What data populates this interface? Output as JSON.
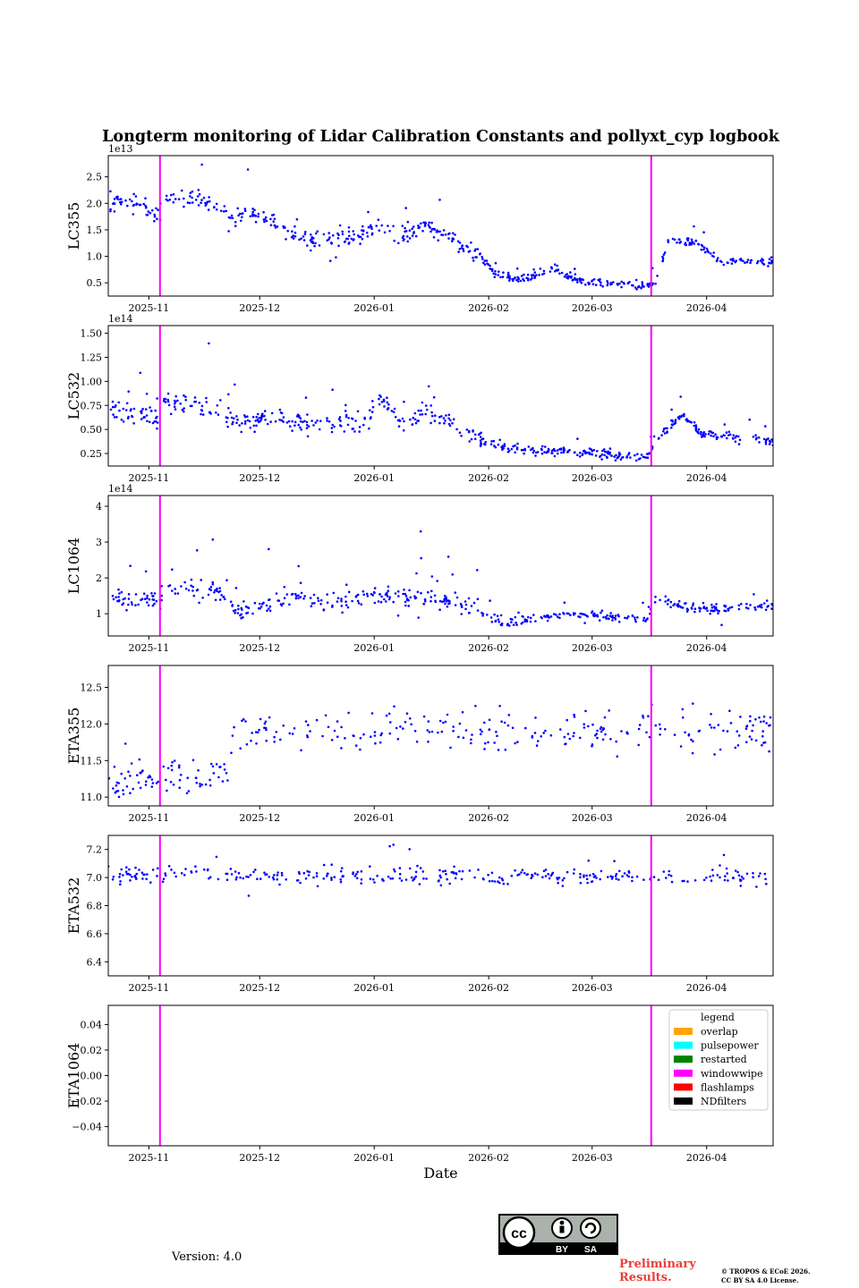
{
  "chart_data": {
    "type": "scatter",
    "title": "Longterm monitoring of Lidar Calibration Constants and pollyxt_cyp logbook",
    "xlabel": "Date",
    "x_range": [
      "2025-10-21",
      "2026-04-19"
    ],
    "x_ticks": [
      "2025-11",
      "2025-12",
      "2026-01",
      "2026-02",
      "2026-03",
      "2026-04"
    ],
    "events": [
      {
        "type": "windowwipe",
        "date": "2025-11-04",
        "color": "#ff00ff"
      },
      {
        "type": "windowwipe",
        "date": "2026-03-17",
        "color": "#ff00ff"
      }
    ],
    "legend": {
      "title": "legend",
      "placement": "upper right of ETA1064 panel",
      "entries": [
        {
          "label": "overlap",
          "color": "#ffa500"
        },
        {
          "label": "pulsepower",
          "color": "#00ffff"
        },
        {
          "label": "restarted",
          "color": "#008000"
        },
        {
          "label": "windowwipe",
          "color": "#ff00ff"
        },
        {
          "label": "flashlamps",
          "color": "#ff0000"
        },
        {
          "label": "NDfilters",
          "color": "#000000"
        }
      ]
    },
    "marker_color": "#0000ff",
    "panels": [
      {
        "ylabel": "LC355",
        "ylim": [
          0.25,
          2.9
        ],
        "offset_text": "1e13",
        "yticks": [
          0.5,
          1.0,
          1.5,
          2.0,
          2.5
        ],
        "ytick_labels": [
          "0.5",
          "1.0",
          "1.5",
          "2.0",
          "2.5"
        ],
        "density": 3.2,
        "outlier_rate": 0.08,
        "trend": [
          [
            "2025-10-21",
            2.05
          ],
          [
            "2025-10-30",
            1.95
          ],
          [
            "2025-11-04",
            1.75
          ],
          [
            "2025-11-05",
            2.15
          ],
          [
            "2025-11-18",
            2.05
          ],
          [
            "2025-11-24",
            1.75
          ],
          [
            "2025-12-01",
            1.8
          ],
          [
            "2025-12-10",
            1.45
          ],
          [
            "2025-12-15",
            1.35
          ],
          [
            "2025-12-25",
            1.35
          ],
          [
            "2026-01-03",
            1.55
          ],
          [
            "2026-01-08",
            1.35
          ],
          [
            "2026-01-15",
            1.6
          ],
          [
            "2026-01-25",
            1.2
          ],
          [
            "2026-01-30",
            1.0
          ],
          [
            "2026-02-03",
            0.65
          ],
          [
            "2026-02-10",
            0.55
          ],
          [
            "2026-02-18",
            0.75
          ],
          [
            "2026-02-28",
            0.5
          ],
          [
            "2026-03-16",
            0.45
          ],
          [
            "2026-03-18",
            0.45
          ],
          [
            "2026-03-22",
            1.35
          ],
          [
            "2026-03-31",
            1.2
          ],
          [
            "2026-04-05",
            0.9
          ],
          [
            "2026-04-19",
            0.9
          ]
        ],
        "spread": [
          0.12,
          0.28
        ]
      },
      {
        "ylabel": "LC532",
        "ylim": [
          0.12,
          1.58
        ],
        "offset_text": "1e14",
        "yticks": [
          0.25,
          0.5,
          0.75,
          1.0,
          1.25,
          1.5
        ],
        "ytick_labels": [
          "0.25",
          "0.50",
          "0.75",
          "1.00",
          "1.25",
          "1.50"
        ],
        "density": 3.2,
        "outlier_rate": 0.08,
        "trend": [
          [
            "2025-10-21",
            0.7
          ],
          [
            "2025-11-04",
            0.63
          ],
          [
            "2025-11-05",
            0.78
          ],
          [
            "2025-11-20",
            0.72
          ],
          [
            "2025-11-25",
            0.55
          ],
          [
            "2025-12-05",
            0.65
          ],
          [
            "2025-12-15",
            0.55
          ],
          [
            "2025-12-31",
            0.6
          ],
          [
            "2026-01-03",
            0.85
          ],
          [
            "2026-01-08",
            0.55
          ],
          [
            "2026-01-15",
            0.7
          ],
          [
            "2026-01-25",
            0.5
          ],
          [
            "2026-02-01",
            0.35
          ],
          [
            "2026-02-10",
            0.28
          ],
          [
            "2026-02-20",
            0.28
          ],
          [
            "2026-03-16",
            0.2
          ],
          [
            "2026-03-18",
            0.4
          ],
          [
            "2026-03-25",
            0.65
          ],
          [
            "2026-03-31",
            0.45
          ],
          [
            "2026-04-19",
            0.38
          ]
        ],
        "spread": [
          0.07,
          0.16
        ]
      },
      {
        "ylabel": "LC1064",
        "ylim": [
          0.38,
          4.3
        ],
        "offset_text": "1e14",
        "yticks": [
          1,
          2,
          3,
          4
        ],
        "ytick_labels": [
          "1",
          "2",
          "3",
          "4"
        ],
        "density": 2.8,
        "outlier_rate": 0.12,
        "trend": [
          [
            "2025-10-21",
            1.45
          ],
          [
            "2025-11-04",
            1.4
          ],
          [
            "2025-11-05",
            1.75
          ],
          [
            "2025-11-20",
            1.6
          ],
          [
            "2025-11-25",
            1.0
          ],
          [
            "2025-12-10",
            1.45
          ],
          [
            "2025-12-18",
            1.3
          ],
          [
            "2026-01-03",
            1.55
          ],
          [
            "2026-01-20",
            1.4
          ],
          [
            "2026-01-28",
            1.1
          ],
          [
            "2026-02-05",
            0.7
          ],
          [
            "2026-02-20",
            1.0
          ],
          [
            "2026-03-16",
            0.85
          ],
          [
            "2026-03-18",
            1.4
          ],
          [
            "2026-03-31",
            1.1
          ],
          [
            "2026-04-19",
            1.2
          ]
        ],
        "spread": [
          0.18,
          0.45
        ]
      },
      {
        "ylabel": "ETA355",
        "ylim": [
          10.88,
          12.8
        ],
        "yticks": [
          11.0,
          11.5,
          12.0,
          12.5
        ],
        "ytick_labels": [
          "11.0",
          "11.5",
          "12.0",
          "12.5"
        ],
        "density": 1.8,
        "outlier_rate": 0.0,
        "trend": [
          [
            "2025-10-21",
            11.3
          ],
          [
            "2025-11-20",
            11.3
          ],
          [
            "2025-11-25",
            11.9
          ],
          [
            "2026-04-19",
            11.9
          ]
        ],
        "spread": [
          0.45,
          0.45
        ]
      },
      {
        "ylabel": "ETA532",
        "ylim": [
          6.3,
          7.3
        ],
        "yticks": [
          6.4,
          6.6,
          6.8,
          7.0,
          7.2
        ],
        "ytick_labels": [
          "6.4",
          "6.6",
          "6.8",
          "7.0",
          "7.2"
        ],
        "density": 1.8,
        "outlier_rate": 0.04,
        "trend": [
          [
            "2025-10-21",
            7.02
          ],
          [
            "2026-04-19",
            7.0
          ]
        ],
        "spread": [
          0.1,
          0.1
        ]
      },
      {
        "ylabel": "ETA1064",
        "ylim": [
          -0.055,
          0.055
        ],
        "yticks": [
          -0.04,
          -0.02,
          0.0,
          0.02,
          0.04
        ],
        "ytick_labels": [
          "−0.04",
          "−0.02",
          "0.00",
          "0.02",
          "0.04"
        ],
        "density": 0,
        "outlier_rate": 0,
        "trend": [],
        "spread": [
          0,
          0
        ]
      }
    ]
  },
  "footer": {
    "version": "Version: 4.0",
    "preliminary_line1": "Preliminary",
    "preliminary_line2": "Results.",
    "copyright_line1": "© TROPOS & ECoE 2026.",
    "copyright_line2": "CC BY SA 4.0 License.",
    "license_badge": {
      "logo": "cc",
      "by": "BY",
      "sa": "SA"
    }
  }
}
